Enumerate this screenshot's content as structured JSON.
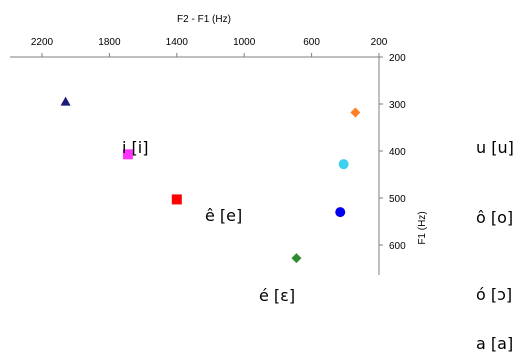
{
  "chart_data": {
    "type": "scatter",
    "title": "",
    "xlabel": "F2 - F1 (Hz)",
    "ylabel": "F1 (Hz)",
    "x_axis": {
      "position": "top",
      "reversed": true,
      "min": 200,
      "max": 2400,
      "ticks": [
        2200,
        1800,
        1400,
        1000,
        600,
        200
      ]
    },
    "y_axis": {
      "position": "right",
      "reversed": true,
      "min": 200,
      "max": 680,
      "ticks": [
        200,
        300,
        400,
        500,
        600
      ]
    },
    "grid": false,
    "legend": "none",
    "series": [
      {
        "marker": "triangle",
        "color": "#1a1a7a",
        "x": 2060,
        "y": 295
      },
      {
        "marker": "square",
        "color": "#ff33ff",
        "x": 1690,
        "y": 407
      },
      {
        "marker": "square",
        "color": "#ff0000",
        "x": 1400,
        "y": 503
      },
      {
        "marker": "diamond",
        "color": "#2e8b2e",
        "x": 690,
        "y": 628
      },
      {
        "marker": "diamond",
        "color": "#ff7f27",
        "x": 340,
        "y": 318
      },
      {
        "marker": "circle",
        "color": "#3fd0f0",
        "x": 410,
        "y": 428
      },
      {
        "marker": "circle",
        "color": "#0000ee",
        "x": 430,
        "y": 530
      }
    ],
    "annotations": [
      "i [i]",
      "ê [e]",
      "é [ɛ]",
      "u [u]",
      "ô [o]",
      "ó [ɔ]",
      "a [a]"
    ]
  }
}
